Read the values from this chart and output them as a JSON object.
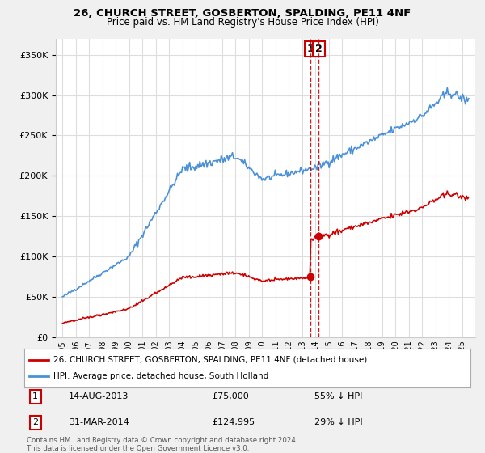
{
  "title": "26, CHURCH STREET, GOSBERTON, SPALDING, PE11 4NF",
  "subtitle": "Price paid vs. HM Land Registry's House Price Index (HPI)",
  "hpi_label": "HPI: Average price, detached house, South Holland",
  "property_label": "26, CHURCH STREET, GOSBERTON, SPALDING, PE11 4NF (detached house)",
  "legend1_num": "1",
  "legend1_date": "14-AUG-2013",
  "legend1_price": "£75,000",
  "legend1_hpi": "55% ↓ HPI",
  "legend2_num": "2",
  "legend2_date": "31-MAR-2014",
  "legend2_price": "£124,995",
  "legend2_hpi": "29% ↓ HPI",
  "footer": "Contains HM Land Registry data © Crown copyright and database right 2024.\nThis data is licensed under the Open Government Licence v3.0.",
  "hpi_color": "#4a90d9",
  "property_color": "#cc0000",
  "marker1_x": 2013.62,
  "marker1_y": 75000,
  "marker2_x": 2014.25,
  "marker2_y": 124995,
  "vline_x1": 2013.62,
  "vline_x2": 2014.25,
  "ylim": [
    0,
    370000
  ],
  "xlim": [
    1994.5,
    2026.0
  ],
  "yticks": [
    0,
    50000,
    100000,
    150000,
    200000,
    250000,
    300000,
    350000
  ],
  "xticks": [
    1995,
    1996,
    1997,
    1998,
    1999,
    2000,
    2001,
    2002,
    2003,
    2004,
    2005,
    2006,
    2007,
    2008,
    2009,
    2010,
    2011,
    2012,
    2013,
    2014,
    2015,
    2016,
    2017,
    2018,
    2019,
    2020,
    2021,
    2022,
    2023,
    2024,
    2025
  ],
  "background_color": "#f0f0f0",
  "plot_background": "#ffffff",
  "grid_color": "#dddddd"
}
